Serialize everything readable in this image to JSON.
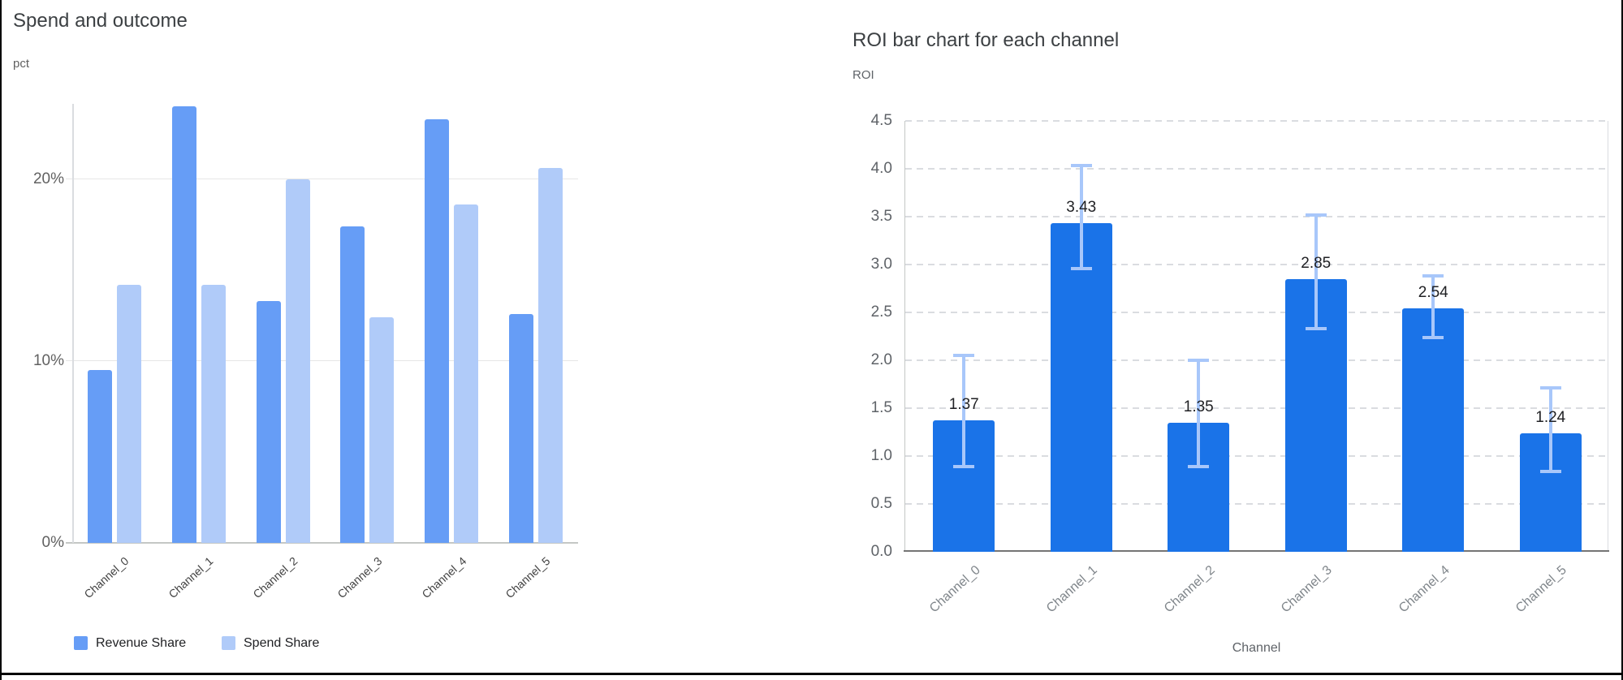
{
  "window": {
    "background": "#ffffff",
    "frame_color": "#000000"
  },
  "chart_data": [
    {
      "type": "bar",
      "title": "Spend and outcome",
      "ylabel": "pct",
      "xlabel": "",
      "categories": [
        "Channel_0",
        "Channel_1",
        "Channel_2",
        "Channel_3",
        "Channel_4",
        "Channel_5"
      ],
      "series": [
        {
          "name": "Revenue Share",
          "color": "#669df6",
          "values": [
            9.5,
            24.0,
            13.3,
            17.4,
            23.3,
            12.6
          ]
        },
        {
          "name": "Spend Share",
          "color": "#b0cbf9",
          "values": [
            14.2,
            14.2,
            20.0,
            12.4,
            18.6,
            20.6
          ]
        }
      ],
      "value_unit": "percent",
      "ylim": [
        0,
        24.13
      ],
      "yticks": [
        {
          "value": 0,
          "label": "0%"
        },
        {
          "value": 10,
          "label": "10%"
        },
        {
          "value": 20,
          "label": "20%"
        }
      ],
      "grid": "solid-horizontal",
      "legend_position": "bottom-left"
    },
    {
      "type": "bar",
      "title": "ROI bar chart for each channel",
      "ylabel": "ROI",
      "xlabel": "Channel",
      "categories": [
        "Channel_0",
        "Channel_1",
        "Channel_2",
        "Channel_3",
        "Channel_4",
        "Channel_5"
      ],
      "values": [
        1.37,
        3.43,
        1.35,
        2.85,
        2.54,
        1.24
      ],
      "data_labels": [
        "1.37",
        "3.43",
        "1.35",
        "2.85",
        "2.54",
        "1.24"
      ],
      "error_low": [
        0.89,
        2.96,
        0.89,
        2.33,
        2.24,
        0.84
      ],
      "error_high": [
        2.05,
        4.03,
        2.0,
        3.52,
        2.88,
        1.71
      ],
      "bar_color": "#1a73e8",
      "error_bar_color": "#a8c7fa",
      "ylim": [
        0,
        4.5
      ],
      "yticks": [
        {
          "value": 0.0,
          "label": "0.0"
        },
        {
          "value": 0.5,
          "label": "0.5"
        },
        {
          "value": 1.0,
          "label": "1.0"
        },
        {
          "value": 1.5,
          "label": "1.5"
        },
        {
          "value": 2.0,
          "label": "2.0"
        },
        {
          "value": 2.5,
          "label": "2.5"
        },
        {
          "value": 3.0,
          "label": "3.0"
        },
        {
          "value": 3.5,
          "label": "3.5"
        },
        {
          "value": 4.0,
          "label": "4.0"
        },
        {
          "value": 4.5,
          "label": "4.5"
        }
      ],
      "grid": "dashed-horizontal",
      "legend_position": "none"
    }
  ]
}
